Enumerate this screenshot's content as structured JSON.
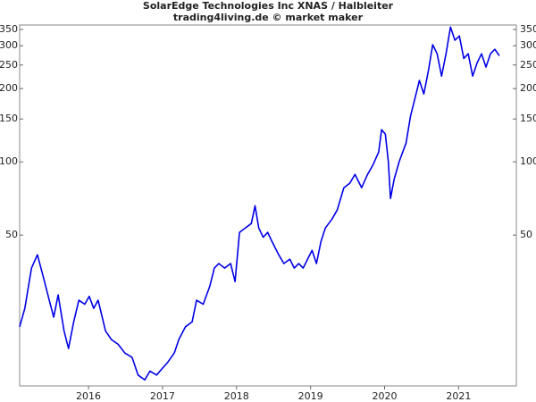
{
  "chart_data": {
    "type": "line",
    "title": "SolarEdge Technologies Inc XNAS / Halbleiter",
    "subtitle": "trading4living.de © market maker",
    "log_scale": true,
    "grid": false,
    "series": [
      {
        "name": "SolarEdge",
        "color": "#0000e6",
        "x": [
          2015.07,
          2015.14,
          2015.23,
          2015.31,
          2015.39,
          2015.47,
          2015.53,
          2015.59,
          2015.67,
          2015.73,
          2015.8,
          2015.87,
          2015.95,
          2016.01,
          2016.07,
          2016.13,
          2016.23,
          2016.31,
          2016.4,
          2016.49,
          2016.59,
          2016.67,
          2016.76,
          2016.83,
          2016.92,
          2017.0,
          2017.07,
          2017.16,
          2017.22,
          2017.31,
          2017.4,
          2017.46,
          2017.55,
          2017.64,
          2017.7,
          2017.76,
          2017.84,
          2017.92,
          2017.98,
          2018.04,
          2018.12,
          2018.2,
          2018.25,
          2018.3,
          2018.36,
          2018.42,
          2018.48,
          2018.57,
          2018.64,
          2018.72,
          2018.78,
          2018.84,
          2018.9,
          2018.96,
          2019.02,
          2019.08,
          2019.14,
          2019.2,
          2019.29,
          2019.36,
          2019.45,
          2019.53,
          2019.6,
          2019.69,
          2019.77,
          2019.84,
          2019.92,
          2019.96,
          2020.01,
          2020.05,
          2020.08,
          2020.13,
          2020.2,
          2020.29,
          2020.35,
          2020.41,
          2020.47,
          2020.53,
          2020.59,
          2020.65,
          2020.71,
          2020.77,
          2020.83,
          2020.89,
          2020.95,
          2021.01,
          2021.07,
          2021.13,
          2021.19,
          2021.25,
          2021.31,
          2021.37,
          2021.43,
          2021.49,
          2021.55
        ],
        "values": [
          21,
          25,
          36.6,
          41.5,
          33.6,
          27,
          23,
          28.4,
          20.2,
          17.1,
          22,
          27,
          26,
          28,
          25,
          27,
          20.2,
          18.6,
          17.8,
          16.4,
          15.7,
          13.3,
          12.7,
          13.8,
          13.3,
          14.2,
          15,
          16.4,
          18.6,
          21,
          22,
          27,
          26,
          30.9,
          36.6,
          38.2,
          36.6,
          38.2,
          32.2,
          51.3,
          53.5,
          55.8,
          66,
          53.5,
          49,
          51.3,
          47,
          41.5,
          38.2,
          39.8,
          36.6,
          38.2,
          36.6,
          39.8,
          43.3,
          38.2,
          47,
          53.5,
          58.2,
          63.4,
          78.3,
          81.7,
          88.8,
          78.3,
          88.8,
          96.7,
          109.7,
          135.6,
          130,
          100.8,
          70.7,
          85,
          100.8,
          119.4,
          154,
          182,
          216,
          190,
          235,
          303,
          278,
          225,
          278,
          358,
          316,
          329,
          266,
          278,
          225,
          255,
          278,
          245,
          278,
          290,
          273
        ]
      }
    ],
    "xlim": [
      2015.07,
      2021.78
    ],
    "xticks": [
      2016,
      2017,
      2018,
      2019,
      2020,
      2021
    ],
    "ylim": [
      12,
      365
    ],
    "yticks": [
      50,
      100,
      150,
      200,
      250,
      300,
      350
    ]
  }
}
